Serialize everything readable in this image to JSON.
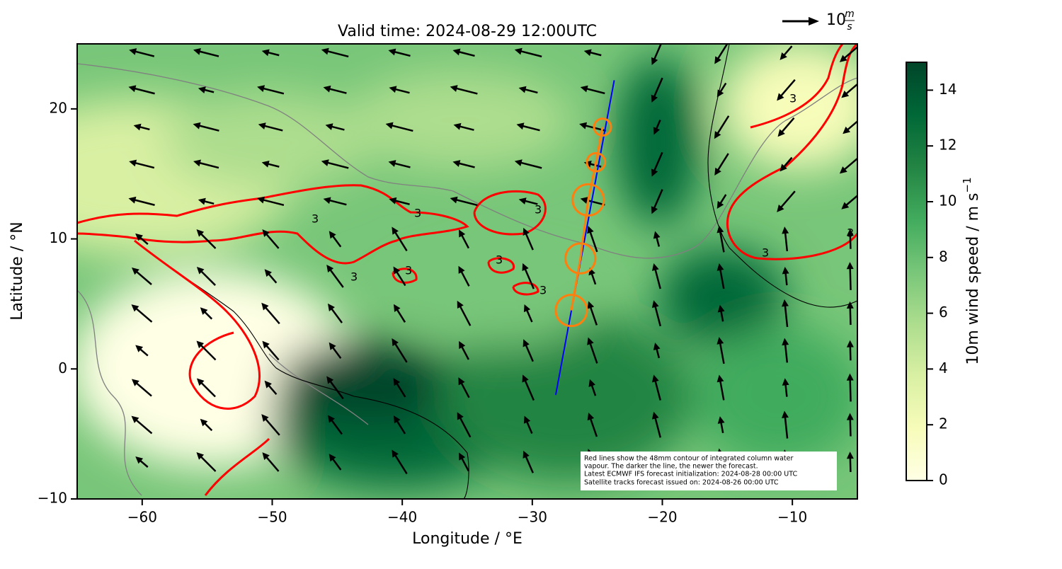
{
  "map": {
    "title": "Valid time: 2024-08-29 12:00UTC",
    "x_label": "Longitude / °E",
    "y_label": "Latitude / °N",
    "xlim": [
      -65,
      -5
    ],
    "ylim": [
      -10,
      25
    ],
    "xticks": [
      {
        "value": -60,
        "label": "−60"
      },
      {
        "value": -50,
        "label": "−50"
      },
      {
        "value": -40,
        "label": "−40"
      },
      {
        "value": -30,
        "label": "−30"
      },
      {
        "value": -20,
        "label": "−20"
      },
      {
        "value": -10,
        "label": "−10"
      }
    ],
    "yticks": [
      {
        "value": -10,
        "label": "−10"
      },
      0,
      10,
      20
    ],
    "colorbar": {
      "label": "10m wind speed / m s",
      "label_exponent": "−1",
      "lim": [
        0,
        15
      ],
      "ticks": [
        0,
        2,
        4,
        6,
        8,
        10,
        12,
        14
      ],
      "colormap": [
        "#ffffe5",
        "#f7fcb9",
        "#d9f0a3",
        "#addd8e",
        "#78c679",
        "#41ab5d",
        "#238443",
        "#006837",
        "#004529"
      ]
    },
    "reference_arrow": {
      "label": "10",
      "unit_numerator": "m",
      "unit_denominator": "s"
    },
    "contour_label": "3",
    "annotation": [
      "Red lines show the 48mm contour of integrated column water",
      "vapour. The darker the line, the newer the forecast.",
      "Latest ECMWF IFS forecast initialization: 2024-08-28 00:00 UTC",
      "Satellite tracks forecast issued on: 2024-08-26 00:00 UTC"
    ],
    "track": {
      "color": "#0000ff",
      "lon": [
        -28.2,
        -23.7
      ],
      "lat": [
        -2,
        22.2
      ]
    },
    "footprints": {
      "color": "#ff7f0e",
      "lon": [
        -27.0,
        -26.3,
        -25.7,
        -25.1,
        -24.6
      ],
      "lat": [
        4.5,
        8.5,
        13.0,
        15.9,
        18.6
      ],
      "radius": [
        1.2,
        1.15,
        1.2,
        0.7,
        0.65
      ]
    }
  }
}
